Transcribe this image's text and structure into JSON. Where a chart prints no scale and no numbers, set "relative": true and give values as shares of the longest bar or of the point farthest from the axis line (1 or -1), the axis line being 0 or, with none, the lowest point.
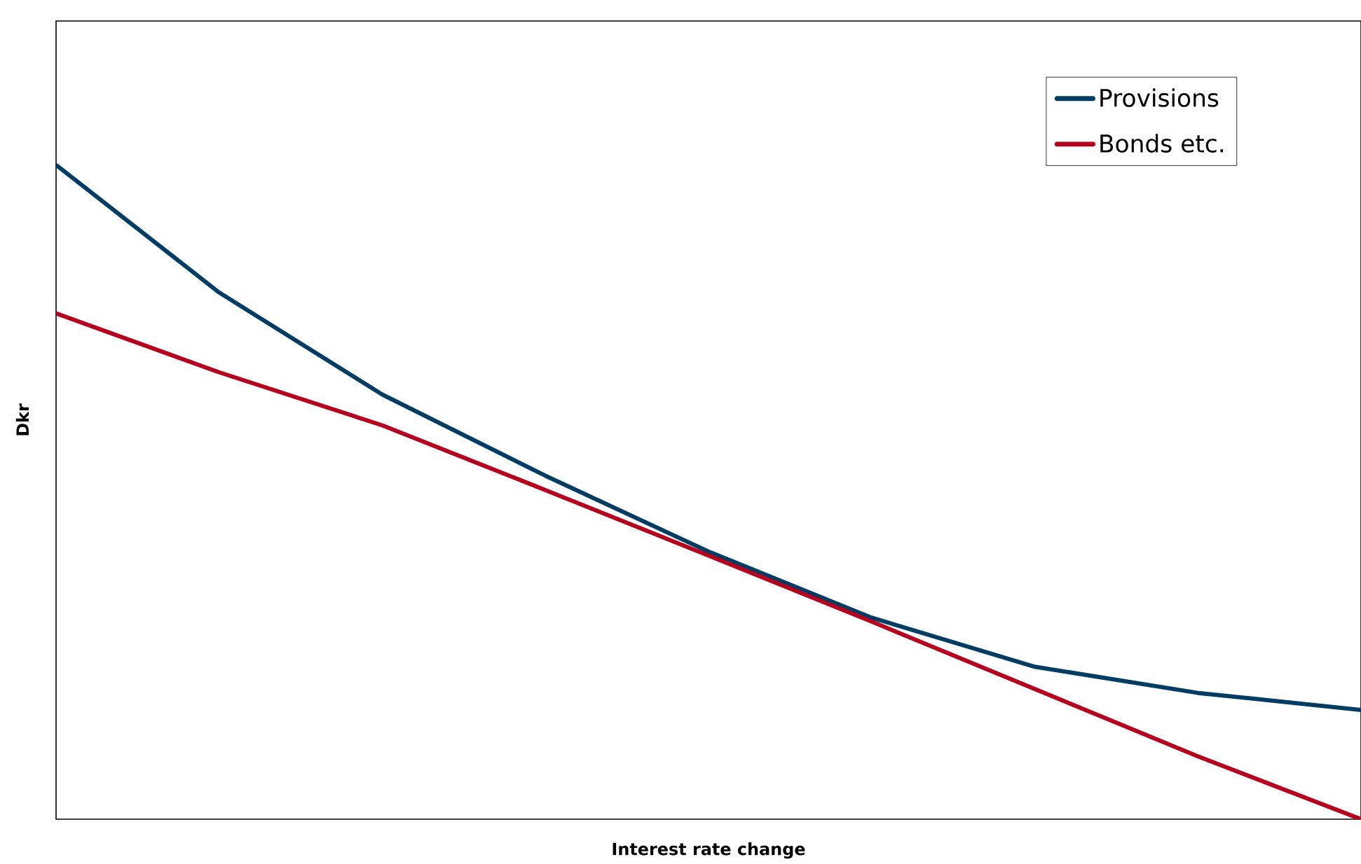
{
  "chart_data": {
    "type": "line",
    "xlabel": "Interest rate change",
    "ylabel": "Dkr",
    "relative": true,
    "categories": [
      null,
      null,
      null,
      null,
      null,
      null,
      null,
      null,
      null
    ],
    "series": [
      {
        "name": "Provisions",
        "color": "#003c64",
        "values": [
          1.0,
          0.805,
          0.649,
          0.525,
          0.409,
          0.308,
          0.233,
          0.193,
          0.167
        ]
      },
      {
        "name": "Bonds etc.",
        "color": "#b5001e",
        "values": [
          0.773,
          0.683,
          0.602,
          0.503,
          0.403,
          0.302,
          0.199,
          0.096,
          0.0
        ]
      }
    ],
    "legend": "top right",
    "marker": "none",
    "line_style": "solid"
  }
}
